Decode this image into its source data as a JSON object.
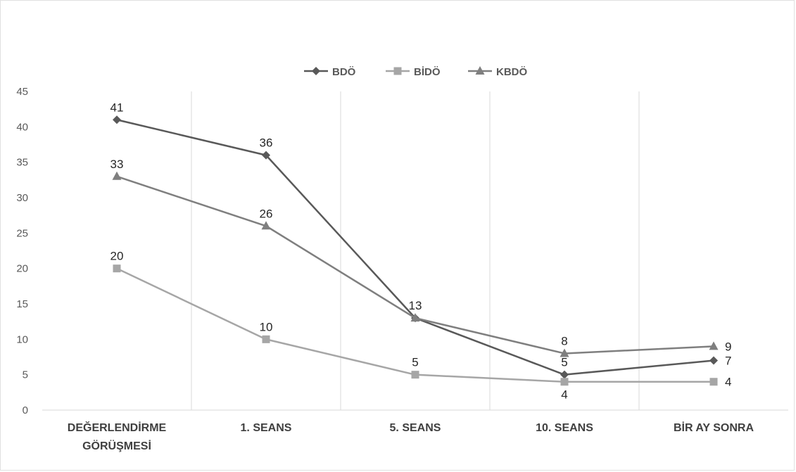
{
  "chart_data": {
    "type": "line",
    "categories": [
      [
        "DEĞERLENDİRME",
        "GÖRÜŞMESİ"
      ],
      [
        "1. SEANS"
      ],
      [
        "5. SEANS"
      ],
      [
        "10. SEANS"
      ],
      [
        "BİR AY SONRA"
      ]
    ],
    "series": [
      {
        "name": "BDÖ",
        "values": [
          41,
          36,
          13,
          5,
          7
        ],
        "color": "#595959",
        "marker": "diamond"
      },
      {
        "name": "BİDÖ",
        "values": [
          20,
          10,
          5,
          4,
          4
        ],
        "color": "#a6a6a6",
        "marker": "square"
      },
      {
        "name": "KBDÖ",
        "values": [
          33,
          26,
          13,
          8,
          9
        ],
        "color": "#7f7f7f",
        "marker": "triangle"
      }
    ],
    "ylim": [
      0,
      45
    ],
    "yticks": [
      0,
      5,
      10,
      15,
      20,
      25,
      30,
      35,
      40,
      45
    ],
    "grid": "vertical separators between categories",
    "legend": "top-center",
    "title": "",
    "xlabel": "",
    "ylabel": ""
  }
}
